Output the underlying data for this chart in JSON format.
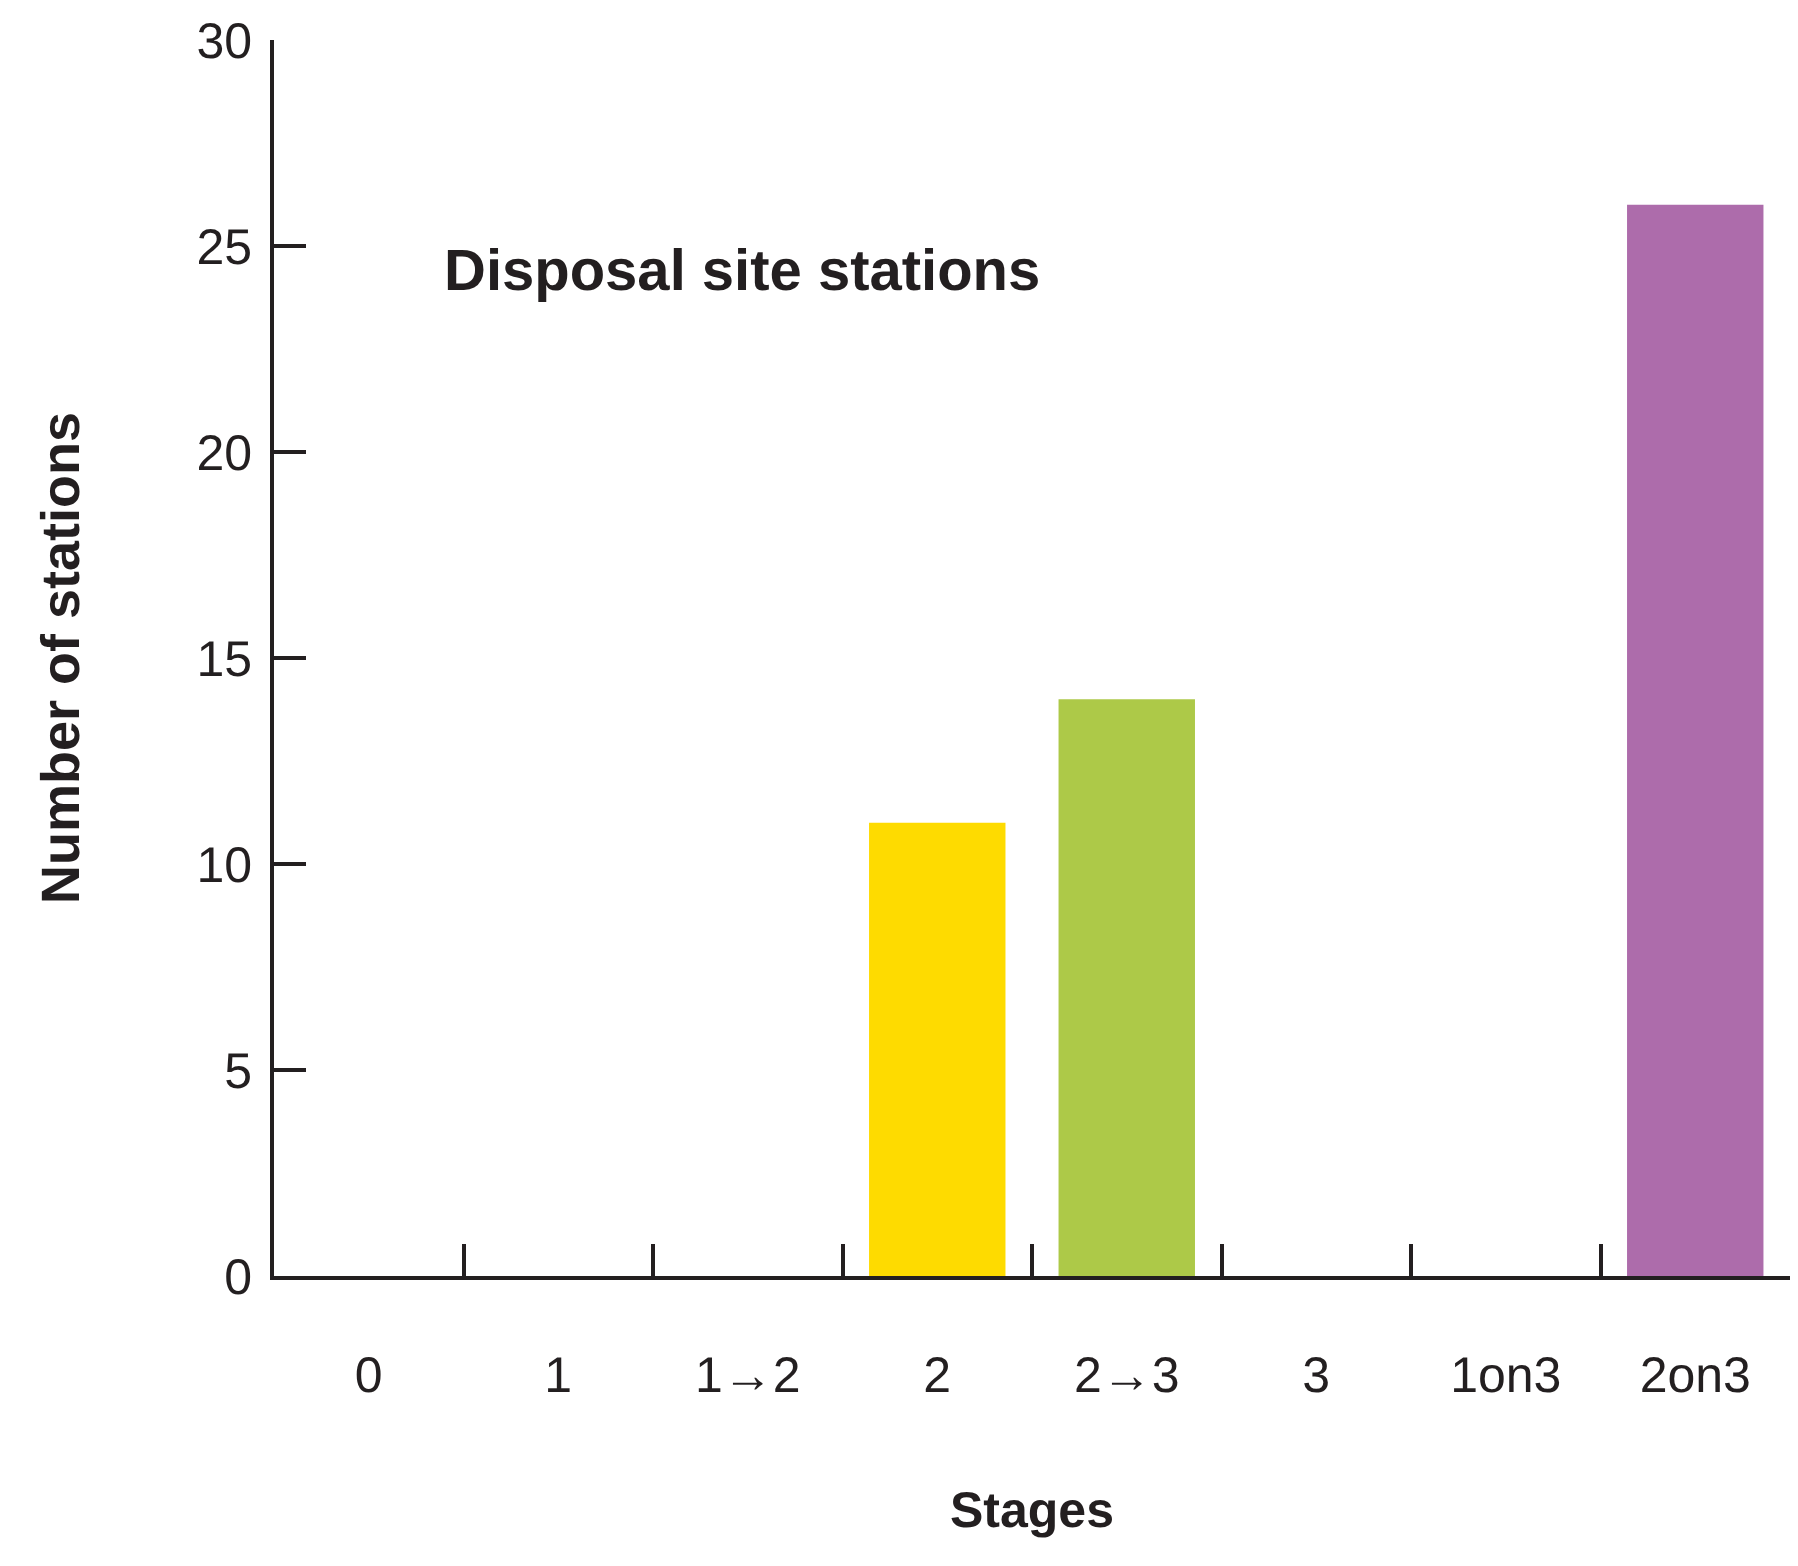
{
  "chart_data": {
    "type": "bar",
    "title": "Disposal site stations",
    "xlabel": "Stages",
    "ylabel": "Number of stations",
    "categories": [
      "0",
      "1",
      "1→2",
      "2",
      "2→3",
      "3",
      "1on3",
      "2on3"
    ],
    "values": [
      0,
      0,
      0,
      11,
      14,
      0,
      0,
      26
    ],
    "colors": [
      null,
      null,
      null,
      "#fedb00",
      "#adc948",
      null,
      null,
      "#ad6cab"
    ],
    "ylim": [
      0,
      30
    ],
    "yticks": [
      0,
      5,
      10,
      15,
      20,
      25,
      30
    ]
  }
}
